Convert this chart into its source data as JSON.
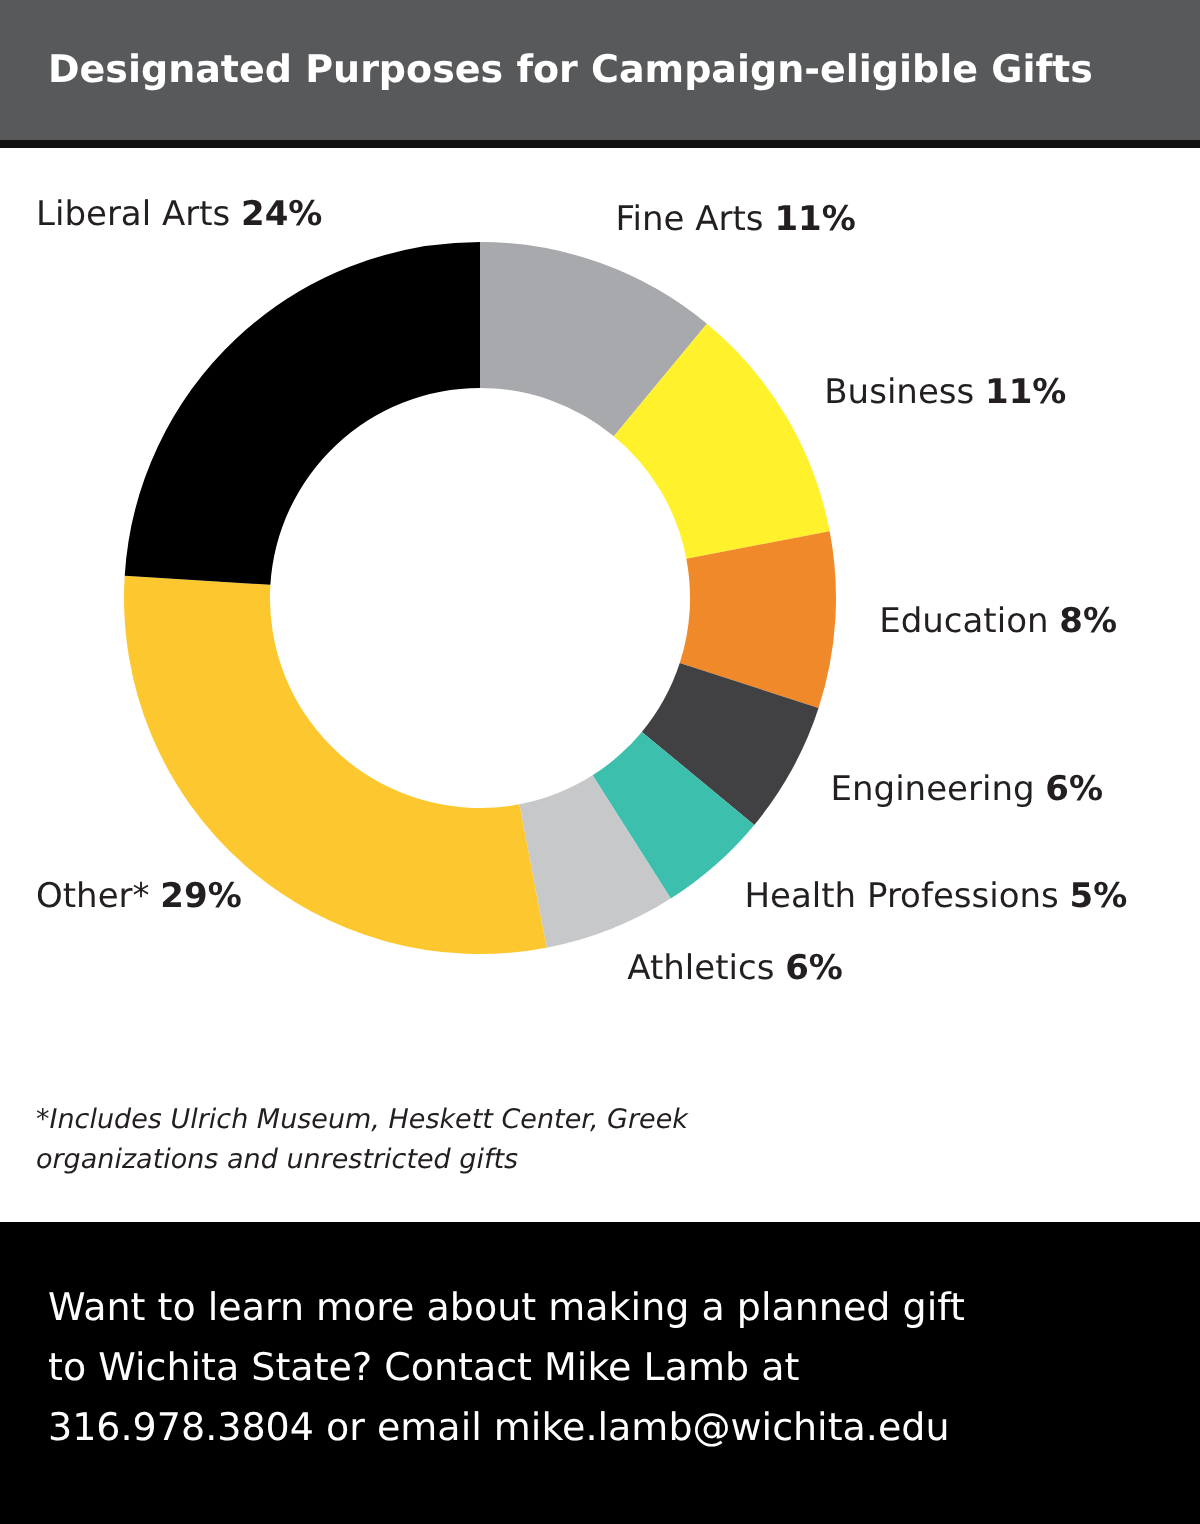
{
  "chart_data": {
    "type": "donut",
    "title": "Designated Purposes for Campaign-eligible Gifts",
    "categories": [
      "Fine Arts",
      "Business",
      "Education",
      "Engineering",
      "Health Professions",
      "Athletics",
      "Other*",
      "Liberal Arts"
    ],
    "values": [
      11,
      11,
      8,
      6,
      5,
      6,
      29,
      24
    ],
    "colors": [
      "#a7a9ac",
      "#fff22d",
      "#f0892a",
      "#414042",
      "#3dbfad",
      "#c7c8ca",
      "#fdc82f",
      "#000000"
    ],
    "value_labels": [
      "11%",
      "11%",
      "8%",
      "6%",
      "5%",
      "6%",
      "29%",
      "24%"
    ],
    "legend": false,
    "annotations": [
      "*Includes Ulrich Museum, Heskett Center, Greek organizations and unrestricted gifts",
      "Want to learn more about making a planned gift to Wichita State? Contact Mike Lamb at 316.978.3804 or email mike.lamb@wichita.edu"
    ]
  }
}
